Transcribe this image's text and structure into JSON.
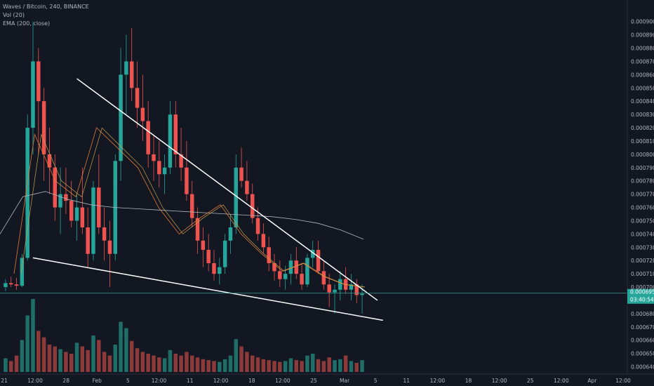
{
  "legend": {
    "title": "Waves / Bitcoin, 240, BINANCE",
    "vol": "Vol (20)",
    "ema": "EMA (200, close)"
  },
  "colors": {
    "background": "#131722",
    "up": "#26a69a",
    "down": "#ef5350",
    "up_volume": "#1f6f68",
    "down_volume": "#8c3a3a",
    "ema200": "#b2b5be",
    "ema_short_1": "#e07b39",
    "ema_short_2": "#c9a04a",
    "trendline": "#ffffff",
    "price_line": "#26a69a",
    "axis_text": "#b2b5be"
  },
  "chart_data": {
    "type": "candlestick",
    "title": "Waves / Bitcoin, 240, BINANCE",
    "y_axis": {
      "position": "right",
      "ylim": [
        0.000635,
        0.000912
      ],
      "tick_labels": [
        "0.0009000",
        "0.0008900",
        "0.0008800",
        "0.0008700",
        "0.0008600",
        "0.0008500",
        "0.0008400",
        "0.0008300",
        "0.0008200",
        "0.0008100",
        "0.0008000",
        "0.0007900",
        "0.0007800",
        "0.0007700",
        "0.0007600",
        "0.0007500",
        "0.0007400",
        "0.0007300",
        "0.0007200",
        "0.0007100",
        "0.0007000",
        "0.0006900",
        "0.0006800",
        "0.0006700",
        "0.0006600",
        "0.0006500",
        "0.0006400"
      ]
    },
    "x_axis": {
      "tick_labels": [
        "21",
        "12:00",
        "28",
        "Feb",
        "5",
        "12:00",
        "11",
        "12:00",
        "18",
        "12:00",
        "25",
        "Mar",
        "5",
        "11",
        "12:00",
        "18",
        "12:00",
        "25",
        "12:00",
        "Apr",
        "12:00"
      ]
    },
    "last_price": {
      "label": "0.0006954",
      "value": 0.0006954
    },
    "countdown": "03:40:54",
    "series": [
      {
        "name": "EMA (200, close)",
        "type": "line"
      }
    ],
    "ema200": [
      0.00074,
      0.000768,
      0.000772,
      0.000766,
      0.000762,
      0.00076,
      0.000759,
      0.000758,
      0.000757,
      0.000756,
      0.000755,
      0.000754,
      0.000753,
      0.000751,
      0.000748,
      0.000743,
      0.000736
    ],
    "ema_short": [
      0.00071,
      0.000815,
      0.00078,
      0.000768,
      0.00082,
      0.000805,
      0.00079,
      0.00076,
      0.00074,
      0.000752,
      0.000762,
      0.00074,
      0.000725,
      0.000712,
      0.000718,
      0.000708,
      0.000702,
      0.0007
    ],
    "ohlc": [
      [
        0.0007,
        0.000706,
        0.000697,
        0.000703
      ],
      [
        0.000703,
        0.000708,
        0.0007,
        0.000702
      ],
      [
        0.000702,
        0.000707,
        0.000698,
        0.000701
      ],
      [
        0.000701,
        0.000725,
        0.0007,
        0.000722
      ],
      [
        0.000722,
        0.00083,
        0.00072,
        0.00082
      ],
      [
        0.00082,
        0.0009,
        0.0008,
        0.00087
      ],
      [
        0.00087,
        0.00088,
        0.0008,
        0.00084
      ],
      [
        0.00084,
        0.00085,
        0.00078,
        0.0008
      ],
      [
        0.0008,
        0.00082,
        0.00077,
        0.00079
      ],
      [
        0.00079,
        0.0008,
        0.00075,
        0.00076
      ],
      [
        0.00076,
        0.00079,
        0.00074,
        0.00077
      ],
      [
        0.00077,
        0.00079,
        0.000755,
        0.000765
      ],
      [
        0.000765,
        0.00078,
        0.000745,
        0.00075
      ],
      [
        0.00075,
        0.00077,
        0.000735,
        0.00076
      ],
      [
        0.00076,
        0.00079,
        0.00074,
        0.000745
      ],
      [
        0.000745,
        0.00076,
        0.000715,
        0.000725
      ],
      [
        0.000725,
        0.00078,
        0.00072,
        0.000775
      ],
      [
        0.000775,
        0.0008,
        0.00074,
        0.000745
      ],
      [
        0.000745,
        0.00076,
        0.00072,
        0.000735
      ],
      [
        0.000735,
        0.00075,
        0.0007,
        0.000725
      ],
      [
        0.000725,
        0.0008,
        0.00072,
        0.000795
      ],
      [
        0.000795,
        0.00088,
        0.00078,
        0.00086
      ],
      [
        0.00086,
        0.00089,
        0.00083,
        0.00087
      ],
      [
        0.00087,
        0.000895,
        0.00084,
        0.00085
      ],
      [
        0.00085,
        0.00087,
        0.00082,
        0.000835
      ],
      [
        0.000835,
        0.00086,
        0.00081,
        0.000825
      ],
      [
        0.000825,
        0.00084,
        0.00079,
        0.0008
      ],
      [
        0.0008,
        0.000815,
        0.00078,
        0.000795
      ],
      [
        0.000795,
        0.00081,
        0.000775,
        0.000785
      ],
      [
        0.000785,
        0.0008,
        0.00077,
        0.00079
      ],
      [
        0.00079,
        0.00084,
        0.000785,
        0.00083
      ],
      [
        0.00083,
        0.00084,
        0.00079,
        0.0008
      ],
      [
        0.0008,
        0.00082,
        0.00078,
        0.00079
      ],
      [
        0.00079,
        0.00081,
        0.000765,
        0.00077
      ],
      [
        0.00077,
        0.00078,
        0.000745,
        0.000752
      ],
      [
        0.000752,
        0.00076,
        0.000725,
        0.000735
      ],
      [
        0.000735,
        0.000745,
        0.000715,
        0.000728
      ],
      [
        0.000728,
        0.00074,
        0.000712,
        0.000718
      ],
      [
        0.000718,
        0.000728,
        0.000705,
        0.00071
      ],
      [
        0.00071,
        0.000722,
        0.000702,
        0.000715
      ],
      [
        0.000715,
        0.00074,
        0.00071,
        0.000735
      ],
      [
        0.000735,
        0.000755,
        0.000725,
        0.000745
      ],
      [
        0.000745,
        0.0008,
        0.00074,
        0.00079
      ],
      [
        0.00079,
        0.000805,
        0.000775,
        0.00078
      ],
      [
        0.00078,
        0.000795,
        0.000765,
        0.00077
      ],
      [
        0.00077,
        0.000778,
        0.000748,
        0.000752
      ],
      [
        0.000752,
        0.00076,
        0.000735,
        0.00074
      ],
      [
        0.00074,
        0.000748,
        0.000725,
        0.00073
      ],
      [
        0.00073,
        0.000738,
        0.000712,
        0.000718
      ],
      [
        0.000718,
        0.000725,
        0.000705,
        0.000712
      ],
      [
        0.000712,
        0.00072,
        0.0007,
        0.000706
      ],
      [
        0.000706,
        0.000716,
        0.000698,
        0.00071
      ],
      [
        0.00071,
        0.000725,
        0.000702,
        0.00072
      ],
      [
        0.00072,
        0.00073,
        0.000706,
        0.00071
      ],
      [
        0.00071,
        0.000718,
        0.000698,
        0.000702
      ],
      [
        0.000702,
        0.000725,
        0.0007,
        0.000722
      ],
      [
        0.000722,
        0.000735,
        0.000715,
        0.000728
      ],
      [
        0.000728,
        0.000735,
        0.00071,
        0.000712
      ],
      [
        0.000712,
        0.00072,
        0.000698,
        0.000702
      ],
      [
        0.000702,
        0.00071,
        0.000685,
        0.000696
      ],
      [
        0.000696,
        0.000702,
        0.00068,
        0.000698
      ],
      [
        0.000698,
        0.000712,
        0.00069,
        0.000706
      ],
      [
        0.000706,
        0.000715,
        0.000695,
        0.000698
      ],
      [
        0.000698,
        0.00071,
        0.00069,
        0.000702
      ],
      [
        0.000702,
        0.000706,
        0.000688,
        0.000694
      ],
      [
        0.000694,
        0.000702,
        0.00068,
        0.000695
      ]
    ],
    "volume": [
      0.15,
      0.12,
      0.18,
      0.35,
      0.62,
      0.8,
      0.45,
      0.38,
      0.3,
      0.28,
      0.25,
      0.22,
      0.2,
      0.32,
      0.28,
      0.24,
      0.4,
      0.35,
      0.22,
      0.18,
      0.3,
      0.55,
      0.48,
      0.34,
      0.26,
      0.22,
      0.2,
      0.18,
      0.16,
      0.15,
      0.24,
      0.2,
      0.18,
      0.22,
      0.18,
      0.16,
      0.14,
      0.13,
      0.12,
      0.11,
      0.14,
      0.18,
      0.36,
      0.28,
      0.22,
      0.18,
      0.16,
      0.14,
      0.13,
      0.12,
      0.11,
      0.12,
      0.15,
      0.13,
      0.12,
      0.18,
      0.2,
      0.14,
      0.12,
      0.16,
      0.13,
      0.14,
      0.18,
      0.12,
      0.1,
      0.13
    ],
    "trendlines": [
      {
        "name": "upper-trendline",
        "from": [
          "candle",
          13,
          0.000857
        ],
        "to": [
          "candle",
          66,
          0.00069
        ]
      },
      {
        "name": "lower-trendline",
        "from": [
          "candle",
          5,
          0.000722
        ],
        "to": [
          "candle",
          67,
          0.000675
        ]
      }
    ]
  }
}
